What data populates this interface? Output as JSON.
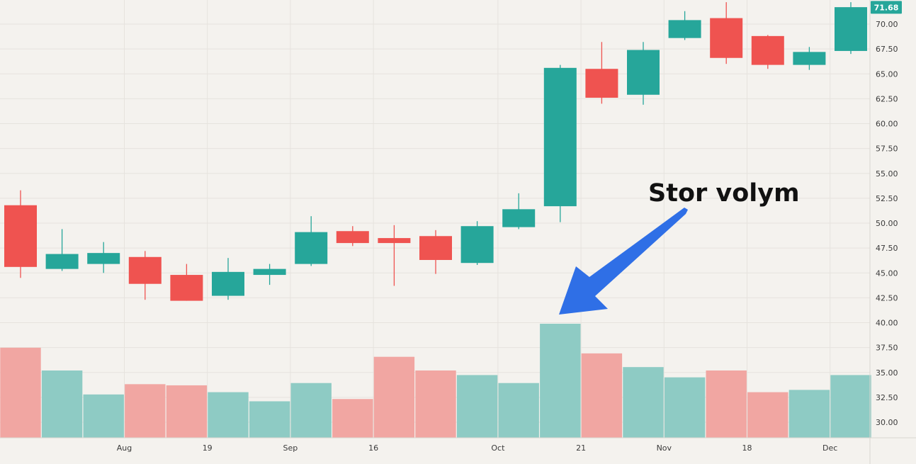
{
  "chart_data": {
    "type": "candlestick",
    "title": "",
    "xlabel": "",
    "ylabel": "",
    "ylim": [
      28.5,
      72.2
    ],
    "y_ticks": [
      "30.00",
      "32.50",
      "35.00",
      "37.50",
      "40.00",
      "42.50",
      "45.00",
      "47.50",
      "50.00",
      "52.50",
      "55.00",
      "57.50",
      "60.00",
      "62.50",
      "65.00",
      "67.50",
      "70.00"
    ],
    "x_labels": [
      {
        "label": "Aug",
        "at": 2.5
      },
      {
        "label": "19",
        "at": 4.5
      },
      {
        "label": "Sep",
        "at": 6.5
      },
      {
        "label": "16",
        "at": 8.5
      },
      {
        "label": "Oct",
        "at": 11.5
      },
      {
        "label": "21",
        "at": 13.5
      },
      {
        "label": "Nov",
        "at": 15.5
      },
      {
        "label": "18",
        "at": 17.5
      },
      {
        "label": "Dec",
        "at": 19.5
      }
    ],
    "candles": [
      {
        "open": 51.8,
        "high": 53.3,
        "low": 44.5,
        "close": 45.6
      },
      {
        "open": 45.4,
        "high": 49.4,
        "low": 45.2,
        "close": 46.9
      },
      {
        "open": 45.9,
        "high": 48.1,
        "low": 45.0,
        "close": 47.0
      },
      {
        "open": 46.6,
        "high": 47.2,
        "low": 42.3,
        "close": 43.9
      },
      {
        "open": 44.8,
        "high": 45.9,
        "low": 42.2,
        "close": 42.2
      },
      {
        "open": 42.7,
        "high": 46.5,
        "low": 42.3,
        "close": 45.1
      },
      {
        "open": 44.8,
        "high": 45.9,
        "low": 43.8,
        "close": 45.4
      },
      {
        "open": 45.9,
        "high": 50.7,
        "low": 45.7,
        "close": 49.1
      },
      {
        "open": 49.2,
        "high": 49.7,
        "low": 47.7,
        "close": 48.0
      },
      {
        "open": 48.5,
        "high": 49.8,
        "low": 43.7,
        "close": 48.0
      },
      {
        "open": 48.7,
        "high": 49.3,
        "low": 44.9,
        "close": 46.3
      },
      {
        "open": 46.0,
        "high": 50.2,
        "low": 45.8,
        "close": 49.7
      },
      {
        "open": 49.6,
        "high": 53.0,
        "low": 49.4,
        "close": 51.4
      },
      {
        "open": 51.7,
        "high": 65.9,
        "low": 50.1,
        "close": 65.6
      },
      {
        "open": 65.5,
        "high": 68.2,
        "low": 62.0,
        "close": 62.6
      },
      {
        "open": 62.9,
        "high": 68.2,
        "low": 61.9,
        "close": 67.4
      },
      {
        "open": 68.6,
        "high": 71.3,
        "low": 68.4,
        "close": 70.4
      },
      {
        "open": 70.6,
        "high": 72.2,
        "low": 66.0,
        "close": 66.6
      },
      {
        "open": 68.8,
        "high": 68.9,
        "low": 65.5,
        "close": 65.9
      },
      {
        "open": 65.9,
        "high": 67.7,
        "low": 65.4,
        "close": 67.2
      },
      {
        "open": 67.3,
        "high": 72.2,
        "low": 67.0,
        "close": 71.7
      }
    ],
    "volume_relative": [
      0.79,
      0.59,
      0.38,
      0.47,
      0.46,
      0.4,
      0.32,
      0.48,
      0.34,
      0.71,
      0.59,
      0.55,
      0.48,
      1.0,
      0.74,
      0.62,
      0.53,
      0.59,
      0.4,
      0.42,
      0.55
    ],
    "last_price": "71.68",
    "annotation": "Stor volym",
    "colors": {
      "up": "#26a69a",
      "down": "#ef5350",
      "up_volume": "#8ecbc4",
      "down_volume": "#f1a6a2",
      "arrow": "#2f6fe6",
      "background": "#f4f2ee",
      "grid": "#e6e3de"
    }
  }
}
